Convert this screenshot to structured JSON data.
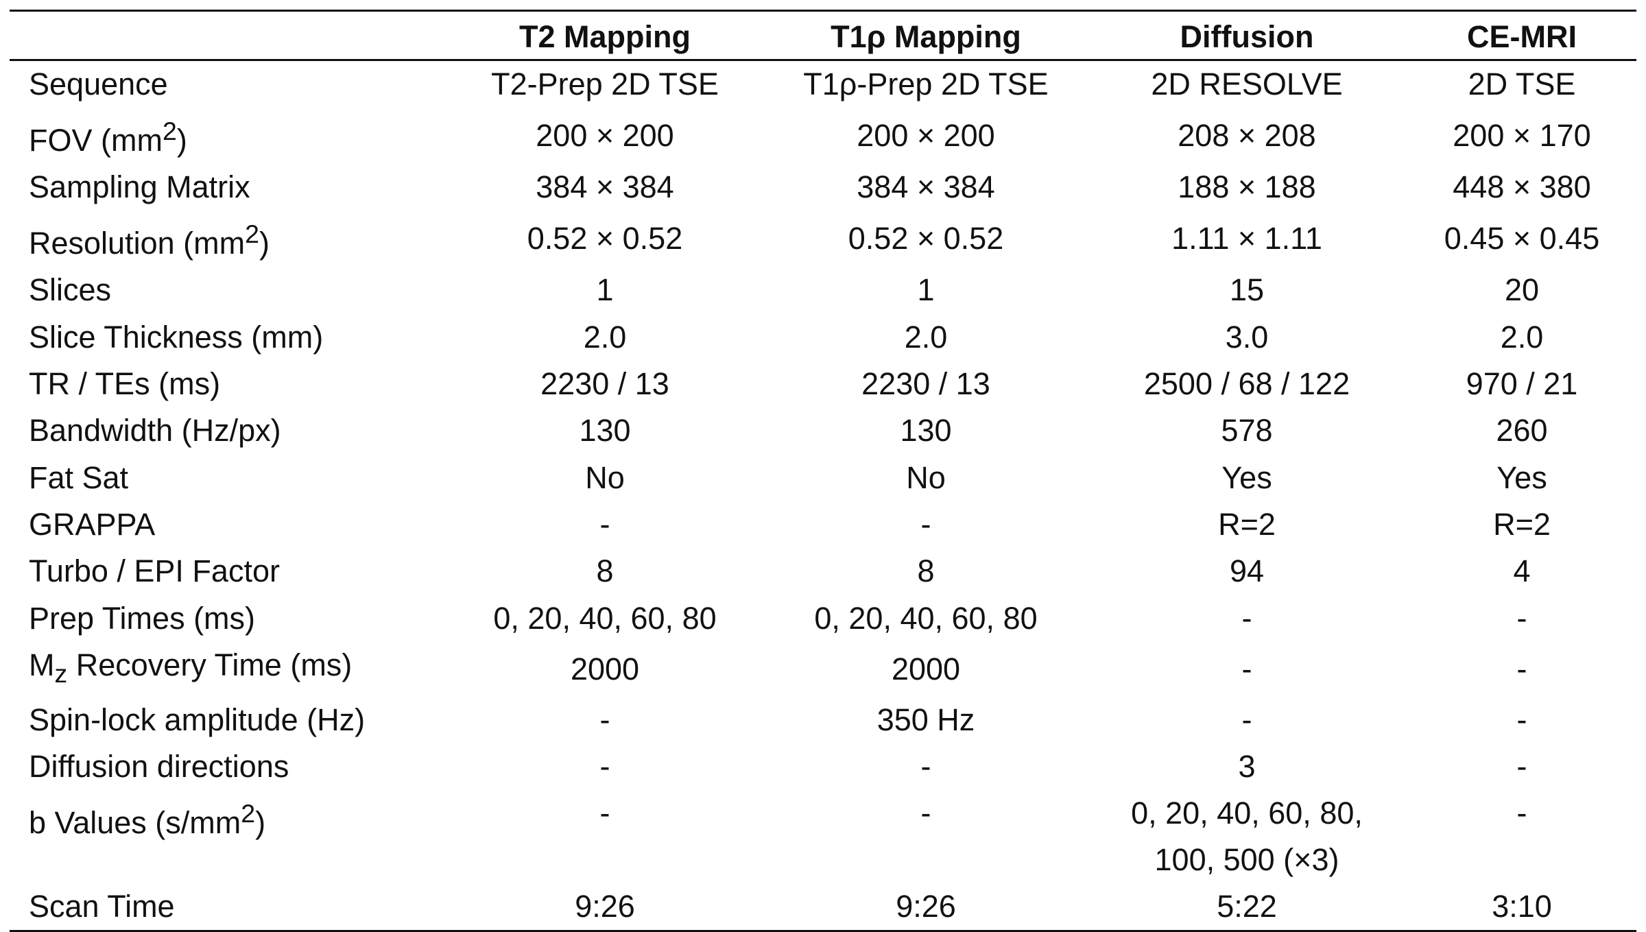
{
  "table": {
    "headers": [
      "",
      "T2 Mapping",
      "T1ρ Mapping",
      "Diffusion",
      "CE-MRI"
    ],
    "rows": [
      {
        "label_main": "Sequence",
        "values": [
          "T2-Prep 2D TSE",
          "T1ρ-Prep 2D TSE",
          "2D RESOLVE",
          "2D TSE"
        ]
      },
      {
        "label_main": "FOV (mm",
        "label_sup": "2",
        "label_end": ")",
        "values": [
          "200 × 200",
          "200 × 200",
          "208 × 208",
          "200 × 170"
        ]
      },
      {
        "label_main": "Sampling Matrix",
        "values": [
          "384 × 384",
          "384 × 384",
          "188 × 188",
          "448 × 380"
        ]
      },
      {
        "label_main": "Resolution (mm",
        "label_sup": "2",
        "label_end": ")",
        "values": [
          "0.52 × 0.52",
          "0.52 × 0.52",
          "1.11 × 1.11",
          "0.45 × 0.45"
        ]
      },
      {
        "label_main": "Slices",
        "values": [
          "1",
          "1",
          "15",
          "20"
        ]
      },
      {
        "label_main": "Slice Thickness (mm)",
        "values": [
          "2.0",
          "2.0",
          "3.0",
          "2.0"
        ]
      },
      {
        "label_main": "TR / TEs (ms)",
        "values": [
          "2230 / 13",
          "2230 / 13",
          "2500 / 68 / 122",
          "970 / 21"
        ]
      },
      {
        "label_main": "Bandwidth (Hz/px)",
        "values": [
          "130",
          "130",
          "578",
          "260"
        ]
      },
      {
        "label_main": "Fat Sat",
        "values": [
          "No",
          "No",
          "Yes",
          "Yes"
        ]
      },
      {
        "label_main": "GRAPPA",
        "values": [
          "-",
          "-",
          "R=2",
          "R=2"
        ]
      },
      {
        "label_main": "Turbo / EPI Factor",
        "values": [
          "8",
          "8",
          "94",
          "4"
        ]
      },
      {
        "label_main": "Prep Times (ms)",
        "values": [
          "0, 20, 40, 60, 80",
          "0, 20, 40, 60, 80",
          "-",
          "-"
        ]
      },
      {
        "label_main": "M",
        "label_sub": "z",
        "label_end": " Recovery Time (ms)",
        "values": [
          "2000",
          "2000",
          "-",
          "-"
        ]
      },
      {
        "label_main": "Spin-lock amplitude (Hz)",
        "values": [
          "-",
          "350 Hz",
          "-",
          "-"
        ]
      },
      {
        "label_main": "Diffusion directions",
        "values": [
          "-",
          "-",
          "3",
          "-"
        ]
      },
      {
        "label_main": "b Values (s/mm",
        "label_sup": "2",
        "label_end": ")",
        "values": [
          "-",
          "-",
          "0, 20, 40, 60, 80,",
          "-"
        ],
        "diffusion_line2": "100, 500 (×3)"
      },
      {
        "label_main": "Scan Time",
        "values": [
          "9:26",
          "9:26",
          "5:22",
          "3:10"
        ]
      }
    ]
  }
}
